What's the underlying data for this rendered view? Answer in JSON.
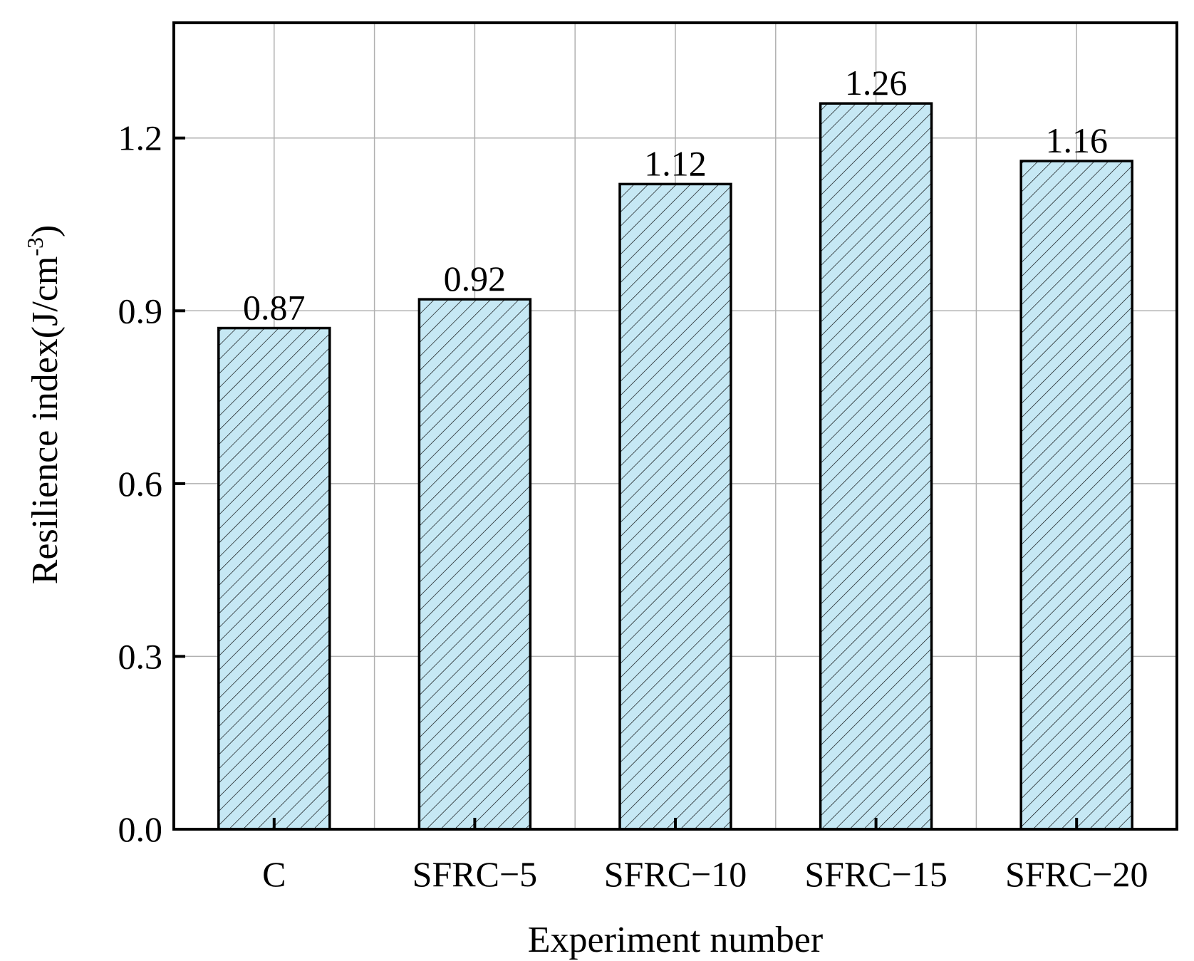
{
  "chart_data": {
    "type": "bar",
    "title": "",
    "xlabel": "Experiment number",
    "ylabel": "Resilience index(J/cm",
    "ylabel_superscript": "-3",
    "ylabel_close": ")",
    "categories": [
      "C",
      "SFRC−5",
      "SFRC−10",
      "SFRC−15",
      "SFRC−20"
    ],
    "values": [
      0.87,
      0.92,
      1.12,
      1.26,
      1.16
    ],
    "value_labels": [
      "0.87",
      "0.92",
      "1.12",
      "1.26",
      "1.16"
    ],
    "yticks": [
      0.0,
      0.3,
      0.6,
      0.9,
      1.2
    ],
    "ytick_labels": [
      "0.0",
      "0.3",
      "0.6",
      "0.9",
      "1.2"
    ],
    "ylim": [
      0,
      1.4
    ],
    "grid": true,
    "bar_fill": "#c6e8f4",
    "bar_edge": "#000000",
    "grid_color": "#b0b0b0",
    "hatch": "diagonal"
  }
}
